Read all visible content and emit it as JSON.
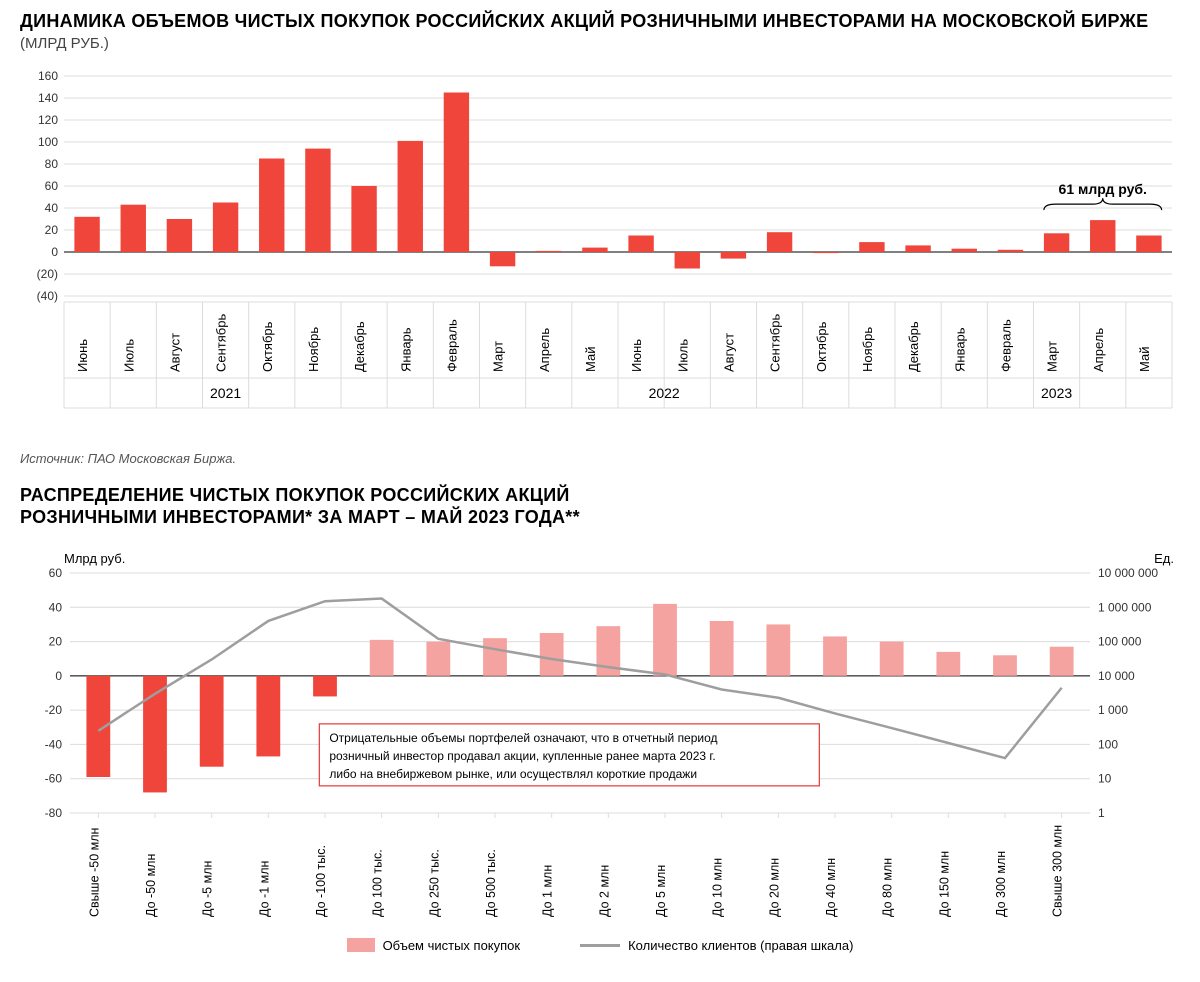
{
  "colors": {
    "red": "#f0453a",
    "pink": "#f5a3a0",
    "grey_line": "#9e9e9e",
    "grid": "#dcdcdc",
    "axis": "#000000",
    "text": "#000000",
    "tick_text": "#333333",
    "annotation_red": "#e53935"
  },
  "chart1": {
    "type": "bar",
    "title": "ДИНАМИКА ОБЪЕМОВ ЧИСТЫХ ПОКУПОК РОССИЙСКИХ АКЦИЙ  РОЗНИЧНЫМИ ИНВЕСТОРАМИ НА МОСКОВСКОЙ БИРЖЕ",
    "subtitle": "(МЛРД РУБ.)",
    "title_fontsize": 18,
    "source": "Источник: ПАО Московская Биржа.",
    "ylim": [
      -40,
      160
    ],
    "ytick_step": 20,
    "y_ticks": [
      -40,
      -20,
      0,
      20,
      40,
      60,
      80,
      100,
      120,
      140,
      160
    ],
    "y_labels": [
      "(40)",
      "(20)",
      "0",
      "20",
      "40",
      "60",
      "80",
      "100",
      "120",
      "140",
      "160"
    ],
    "bar_width_ratio": 0.55,
    "annotation": {
      "text": "61 млрд руб.",
      "start_index": 21,
      "end_index": 23,
      "fontsize": 14,
      "font_weight": "bold"
    },
    "year_groups": [
      {
        "label": "2021",
        "start": 0,
        "end": 6
      },
      {
        "label": "2022",
        "start": 7,
        "end": 18
      },
      {
        "label": "2023",
        "start": 19,
        "end": 23
      }
    ],
    "categories": [
      "Июнь",
      "Июль",
      "Август",
      "Сентябрь",
      "Октябрь",
      "Ноябрь",
      "Декабрь",
      "Январь",
      "Февраль",
      "Март",
      "Апрель",
      "Май",
      "Июнь",
      "Июль",
      "Август",
      "Сентябрь",
      "Октябрь",
      "Ноябрь",
      "Декабрь",
      "Январь",
      "Февраль",
      "Март",
      "Апрель",
      "Май"
    ],
    "values": [
      32,
      43,
      30,
      45,
      85,
      94,
      60,
      101,
      145,
      -13,
      1,
      4,
      15,
      -15,
      -6,
      18,
      -1,
      9,
      6,
      3,
      2,
      17,
      29,
      15
    ]
  },
  "chart2": {
    "type": "bar+line",
    "title_line1": "РАСПРЕДЕЛЕНИЕ ЧИСТЫХ ПОКУПОК РОССИЙСКИХ АКЦИЙ",
    "title_line2": "РОЗНИЧНЫМИ ИНВЕСТОРАМИ* ЗА МАРТ – МАЙ 2023 ГОДА**",
    "title_fontsize": 18,
    "y_left_label": "Млрд руб.",
    "y_right_label": "Ед.",
    "y_left": {
      "lim": [
        -80,
        60
      ],
      "ticks": [
        -80,
        -60,
        -40,
        -20,
        0,
        20,
        40,
        60
      ]
    },
    "y_right_log": {
      "lim": [
        1,
        10000000
      ],
      "ticks": [
        1,
        10,
        100,
        1000,
        10000,
        100000,
        1000000,
        10000000
      ],
      "labels": [
        "1",
        "10",
        "100",
        "1 000",
        "10 000",
        "100 000",
        "1 000 000",
        "10 000 000"
      ]
    },
    "bar_width_ratio": 0.42,
    "categories": [
      "Свыше -50 млн",
      "До -50 млн",
      "До -5 млн",
      "До -1 млн",
      "До -100 тыс.",
      "До 100 тыс.",
      "До 250 тыс.",
      "До 500 тыс.",
      "До 1 млн",
      "До 2 млн",
      "До 5 млн",
      "До 10 млн",
      "До 20 млн",
      "До 40 млн",
      "До 80 млн",
      "До 150 млн",
      "До 300 млн",
      "Свыше 300 млн"
    ],
    "bar_values": [
      -59,
      -68,
      -53,
      -47,
      -12,
      21,
      20,
      22,
      25,
      29,
      42,
      32,
      30,
      23,
      20,
      14,
      12,
      17
    ],
    "line_values_log": [
      250,
      3000,
      30000,
      400000,
      1500000,
      1800000,
      120000,
      60000,
      31000,
      18000,
      11000,
      4000,
      2300,
      800,
      300,
      110,
      40,
      4500
    ],
    "note_box": {
      "text_line1": "Отрицательные объемы портфелей означают, что в отчетный период",
      "text_line2": "розничный инвестор продавал акции, купленные ранее марта 2023 г.",
      "text_line3": "либо на внебиржевом рынке, или осуществлял короткие продажи",
      "fontsize": 12,
      "border_color": "#e53935"
    },
    "legend": {
      "bar_label": "Объем чистых покупок",
      "line_label": "Количество клиентов (правая шкала)"
    }
  }
}
